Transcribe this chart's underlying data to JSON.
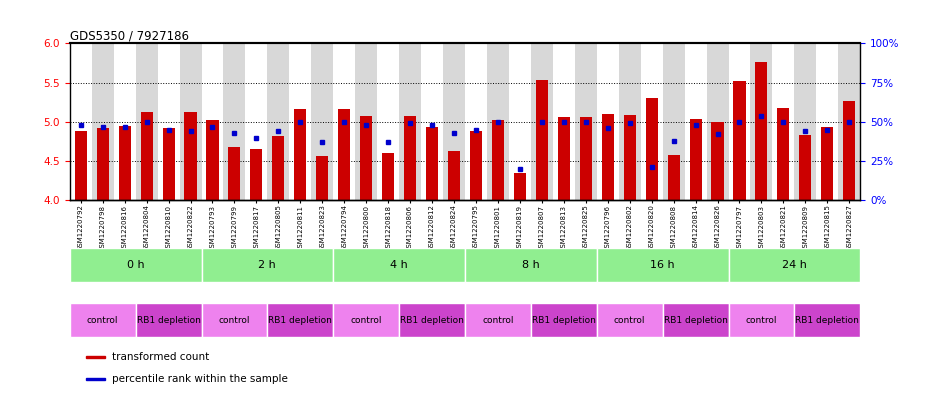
{
  "title": "GDS5350 / 7927186",
  "samples": [
    "GSM1220792",
    "GSM1220798",
    "GSM1220816",
    "GSM1220804",
    "GSM1220810",
    "GSM1220822",
    "GSM1220793",
    "GSM1220799",
    "GSM1220817",
    "GSM1220805",
    "GSM1220811",
    "GSM1220823",
    "GSM1220794",
    "GSM1220800",
    "GSM1220818",
    "GSM1220806",
    "GSM1220812",
    "GSM1220824",
    "GSM1220795",
    "GSM1220801",
    "GSM1220819",
    "GSM1220807",
    "GSM1220813",
    "GSM1220825",
    "GSM1220796",
    "GSM1220802",
    "GSM1220820",
    "GSM1220808",
    "GSM1220814",
    "GSM1220826",
    "GSM1220797",
    "GSM1220803",
    "GSM1220821",
    "GSM1220809",
    "GSM1220815",
    "GSM1220827"
  ],
  "red_values": [
    4.88,
    4.92,
    4.95,
    5.12,
    4.92,
    5.12,
    5.02,
    4.68,
    4.65,
    4.82,
    5.16,
    4.57,
    5.16,
    5.08,
    4.6,
    5.07,
    4.93,
    4.63,
    4.88,
    5.02,
    4.35,
    5.53,
    5.06,
    5.06,
    5.1,
    5.09,
    5.3,
    4.58,
    5.04,
    5.0,
    5.52,
    5.76,
    5.18,
    4.83,
    4.93,
    5.27
  ],
  "blue_values_pct": [
    48,
    47,
    47,
    50,
    45,
    44,
    47,
    43,
    40,
    44,
    50,
    37,
    50,
    48,
    37,
    49,
    48,
    43,
    45,
    50,
    20,
    50,
    50,
    50,
    46,
    49,
    21,
    38,
    48,
    42,
    50,
    54,
    50,
    44,
    45,
    50
  ],
  "time_groups": [
    {
      "label": "0 h",
      "start": 0,
      "end": 6
    },
    {
      "label": "2 h",
      "start": 6,
      "end": 12
    },
    {
      "label": "4 h",
      "start": 12,
      "end": 18
    },
    {
      "label": "8 h",
      "start": 18,
      "end": 24
    },
    {
      "label": "16 h",
      "start": 24,
      "end": 30
    },
    {
      "label": "24 h",
      "start": 30,
      "end": 36
    }
  ],
  "protocol_groups": [
    {
      "label": "control",
      "start": 0,
      "end": 3,
      "color": "#ee82ee"
    },
    {
      "label": "RB1 depletion",
      "start": 3,
      "end": 6,
      "color": "#cc44cc"
    },
    {
      "label": "control",
      "start": 6,
      "end": 9,
      "color": "#ee82ee"
    },
    {
      "label": "RB1 depletion",
      "start": 9,
      "end": 12,
      "color": "#cc44cc"
    },
    {
      "label": "control",
      "start": 12,
      "end": 15,
      "color": "#ee82ee"
    },
    {
      "label": "RB1 depletion",
      "start": 15,
      "end": 18,
      "color": "#cc44cc"
    },
    {
      "label": "control",
      "start": 18,
      "end": 21,
      "color": "#ee82ee"
    },
    {
      "label": "RB1 depletion",
      "start": 21,
      "end": 24,
      "color": "#cc44cc"
    },
    {
      "label": "control",
      "start": 24,
      "end": 27,
      "color": "#ee82ee"
    },
    {
      "label": "RB1 depletion",
      "start": 27,
      "end": 30,
      "color": "#cc44cc"
    },
    {
      "label": "control",
      "start": 30,
      "end": 33,
      "color": "#ee82ee"
    },
    {
      "label": "RB1 depletion",
      "start": 33,
      "end": 36,
      "color": "#cc44cc"
    }
  ],
  "ylim": [
    4.0,
    6.0
  ],
  "yticks_left": [
    4.0,
    4.5,
    5.0,
    5.5,
    6.0
  ],
  "yticks_right_pct": [
    0,
    25,
    50,
    75,
    100
  ],
  "bar_color": "#cc0000",
  "dot_color": "#0000cc",
  "background_color": "#ffffff",
  "alt_bg_color": "#d8d8d8",
  "time_row_color": "#90ee90",
  "bar_width": 0.55,
  "fig_width": 9.3,
  "fig_height": 3.93
}
